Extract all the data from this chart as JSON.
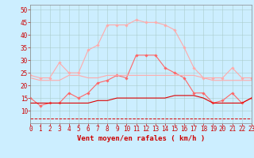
{
  "x": [
    0,
    1,
    2,
    3,
    4,
    5,
    6,
    7,
    8,
    9,
    10,
    11,
    12,
    13,
    14,
    15,
    16,
    17,
    18,
    19,
    20,
    21,
    22,
    23
  ],
  "series": [
    {
      "name": "gust_max",
      "color": "#ffaaaa",
      "linewidth": 0.8,
      "marker": "D",
      "markersize": 1.8,
      "linestyle": "-",
      "values": [
        24,
        23,
        23,
        29,
        25,
        25,
        34,
        36,
        44,
        44,
        44,
        46,
        45,
        45,
        44,
        42,
        35,
        27,
        23,
        23,
        23,
        27,
        23,
        23
      ]
    },
    {
      "name": "gust_mid",
      "color": "#ff6666",
      "linewidth": 0.8,
      "marker": "D",
      "markersize": 1.8,
      "linestyle": "-",
      "values": [
        15,
        12,
        13,
        13,
        17,
        15,
        17,
        21,
        22,
        24,
        23,
        32,
        32,
        32,
        27,
        25,
        23,
        17,
        17,
        13,
        14,
        17,
        13,
        15
      ]
    },
    {
      "name": "wind_max_line",
      "color": "#ffaaaa",
      "linewidth": 0.8,
      "marker": null,
      "linestyle": "-",
      "values": [
        23,
        22,
        22,
        22,
        24,
        24,
        23,
        23,
        24,
        24,
        24,
        24,
        24,
        24,
        24,
        24,
        24,
        24,
        23,
        22,
        22,
        22,
        22,
        22
      ]
    },
    {
      "name": "wind_mid_line",
      "color": "#dd0000",
      "linewidth": 0.8,
      "marker": null,
      "linestyle": "-",
      "values": [
        13,
        13,
        13,
        13,
        13,
        13,
        13,
        14,
        14,
        15,
        15,
        15,
        15,
        15,
        15,
        16,
        16,
        16,
        15,
        13,
        13,
        13,
        13,
        15
      ]
    },
    {
      "name": "wind_min_dashed",
      "color": "#dd0000",
      "linewidth": 0.7,
      "marker": null,
      "linestyle": "--",
      "values": [
        7,
        7,
        7,
        7,
        7,
        7,
        7,
        7,
        7,
        7,
        7,
        7,
        7,
        7,
        7,
        7,
        7,
        7,
        7,
        7,
        7,
        7,
        7,
        7
      ]
    }
  ],
  "xlabel": "Vent moyen/en rafales ( km/h )",
  "xlim": [
    0,
    23
  ],
  "ylim": [
    5,
    52
  ],
  "yticks": [
    10,
    15,
    20,
    25,
    30,
    35,
    40,
    45,
    50
  ],
  "xticks": [
    0,
    1,
    2,
    3,
    4,
    5,
    6,
    7,
    8,
    9,
    10,
    11,
    12,
    13,
    14,
    15,
    16,
    17,
    18,
    19,
    20,
    21,
    22,
    23
  ],
  "bg_color": "#cceeff",
  "grid_color": "#aacccc",
  "text_color": "#cc0000",
  "xlabel_fontsize": 6.5,
  "tick_fontsize": 5.5
}
